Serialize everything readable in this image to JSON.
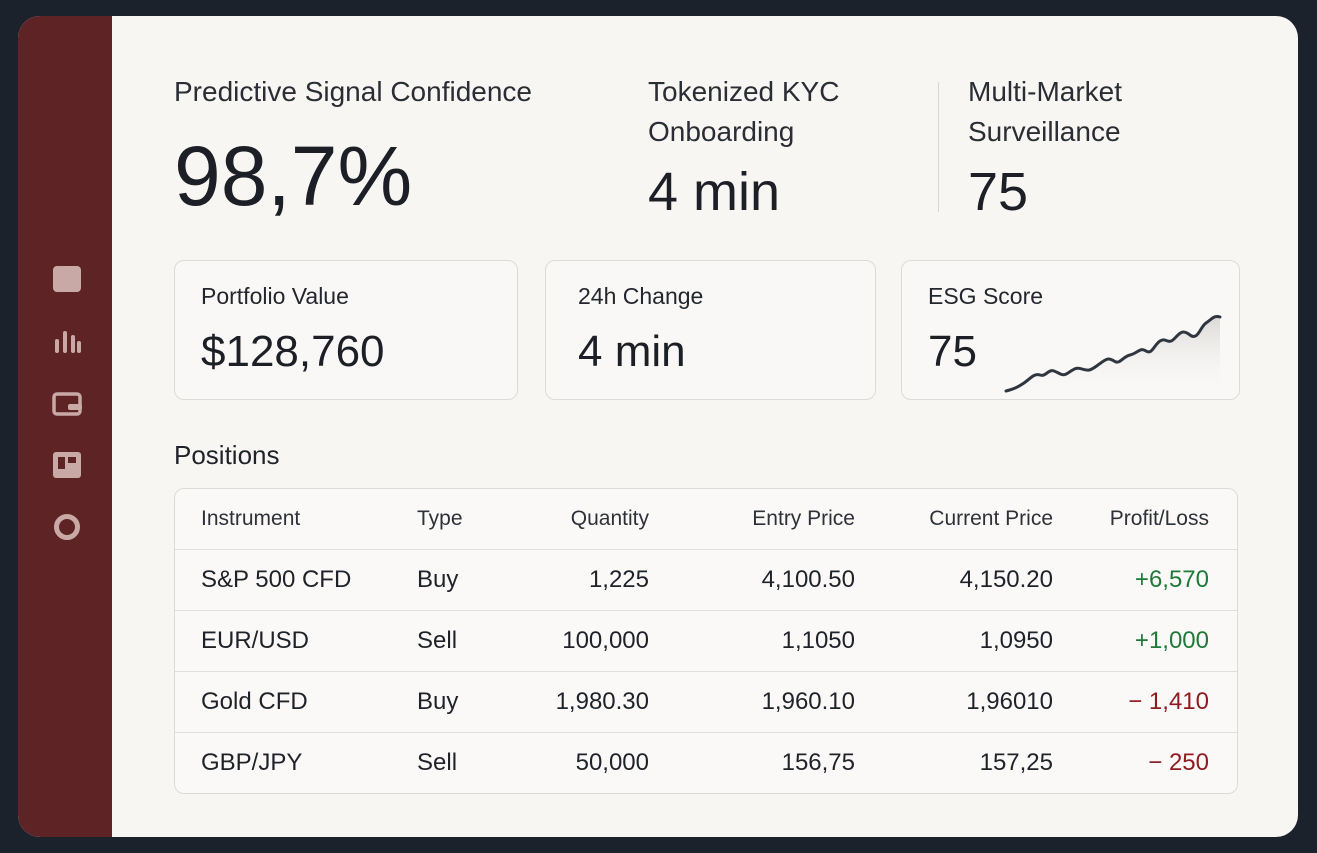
{
  "sidebar": {
    "items": [
      {
        "icon": "dashboard-square-icon"
      },
      {
        "icon": "bar-chart-icon"
      },
      {
        "icon": "wallet-icon"
      },
      {
        "icon": "board-icon"
      },
      {
        "icon": "circle-icon"
      }
    ],
    "bg_color": "#5e2425",
    "icon_color": "#c9a9a6"
  },
  "kpis": {
    "signal": {
      "label": "Predictive Signal Confidence",
      "value": "98,7%"
    },
    "kyc": {
      "label_line1": "Tokenized KYC",
      "label_line2": "Onboarding",
      "value": "4 min"
    },
    "surveillance": {
      "label_line1": "Multi-Market",
      "label_line2": "Surveillance",
      "value": "75"
    }
  },
  "cards": {
    "portfolio": {
      "label": "Portfolio Value",
      "value": "$128,760"
    },
    "change": {
      "label": "24h Change",
      "value": "4 min"
    },
    "esg": {
      "label": "ESG Score",
      "value": "75"
    }
  },
  "positions": {
    "title": "Positions",
    "columns": [
      "Instrument",
      "Type",
      "Quantity",
      "Entry Price",
      "Current Price",
      "Profit/Loss"
    ],
    "rows": [
      {
        "instrument": "S&P 500 CFD",
        "type": "Buy",
        "quantity": "1,225",
        "entry": "4,100.50",
        "current": "4,150.20",
        "pl": "+6,570",
        "direction": "positive"
      },
      {
        "instrument": "EUR/USD",
        "type": "Sell",
        "quantity": "100,000",
        "entry": "1,1050",
        "current": "1,0950",
        "pl": "+1,000",
        "direction": "positive"
      },
      {
        "instrument": "Gold CFD",
        "type": "Buy",
        "quantity": "1,980.30",
        "entry": "1,960.10",
        "current": "1,96010",
        "pl": "− 1,410",
        "direction": "negative"
      },
      {
        "instrument": "GBP/JPY",
        "type": "Sell",
        "quantity": "50,000",
        "entry": "156,75",
        "current": "157,25",
        "pl": "− 250",
        "direction": "negative"
      }
    ]
  },
  "colors": {
    "positive": "#1f7a3a",
    "negative": "#8e1b1f",
    "accent": "#5e2425"
  }
}
